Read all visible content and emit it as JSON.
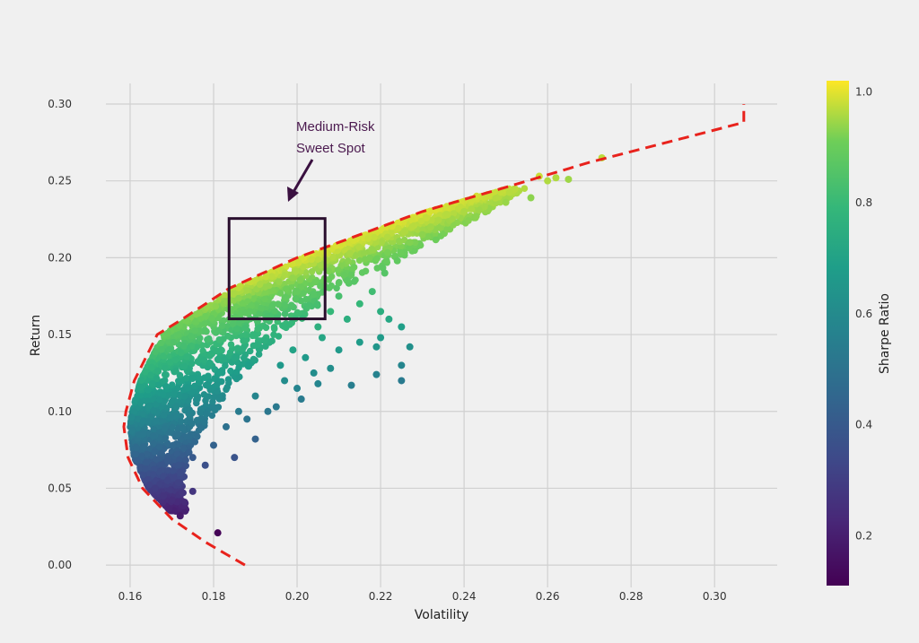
{
  "chart_data": {
    "type": "scatter",
    "title": "",
    "xlabel": "Volatility",
    "ylabel": "Return",
    "xlim": [
      0.1542,
      0.315
    ],
    "ylim": [
      -0.0145,
      0.3134
    ],
    "grid": true,
    "xticks": [
      "0.16",
      "0.18",
      "0.20",
      "0.22",
      "0.24",
      "0.26",
      "0.28",
      "0.30"
    ],
    "yticks": [
      "0.00",
      "0.05",
      "0.10",
      "0.15",
      "0.20",
      "0.25",
      "0.30"
    ],
    "colorbar": {
      "label": "Sharpe Ratio",
      "colormap": "viridis",
      "range": [
        0.11,
        1.02
      ],
      "ticks": [
        "0.2",
        "0.4",
        "0.6",
        "0.8",
        "1.0"
      ]
    },
    "color_value": "Sharpe Ratio = Return / Volatility",
    "frontier": {
      "style": "dashed",
      "color": "#e8221c",
      "points": [
        [
          0.1875,
          0.0
        ],
        [
          0.178,
          0.015
        ],
        [
          0.17,
          0.03
        ],
        [
          0.163,
          0.05
        ],
        [
          0.1595,
          0.07
        ],
        [
          0.1585,
          0.09
        ],
        [
          0.159,
          0.1
        ],
        [
          0.161,
          0.12
        ],
        [
          0.1665,
          0.15
        ],
        [
          0.1725,
          0.16
        ],
        [
          0.1837,
          0.18
        ],
        [
          0.2,
          0.2
        ],
        [
          0.215,
          0.215
        ],
        [
          0.23,
          0.23
        ],
        [
          0.249,
          0.245
        ],
        [
          0.27,
          0.262
        ],
        [
          0.29,
          0.276
        ],
        [
          0.307,
          0.288
        ],
        [
          0.307,
          0.3
        ]
      ]
    },
    "scatter_points": [
      [
        0.181,
        0.021
      ],
      [
        0.172,
        0.032
      ],
      [
        0.168,
        0.045
      ],
      [
        0.175,
        0.048
      ],
      [
        0.166,
        0.05
      ],
      [
        0.172,
        0.058
      ],
      [
        0.178,
        0.065
      ],
      [
        0.185,
        0.07
      ],
      [
        0.18,
        0.078
      ],
      [
        0.19,
        0.082
      ],
      [
        0.183,
        0.09
      ],
      [
        0.188,
        0.095
      ],
      [
        0.193,
        0.1
      ],
      [
        0.195,
        0.103
      ],
      [
        0.201,
        0.108
      ],
      [
        0.205,
        0.118
      ],
      [
        0.213,
        0.117
      ],
      [
        0.219,
        0.124
      ],
      [
        0.2,
        0.115
      ],
      [
        0.197,
        0.12
      ],
      [
        0.204,
        0.125
      ],
      [
        0.208,
        0.128
      ],
      [
        0.225,
        0.12
      ],
      [
        0.225,
        0.13
      ],
      [
        0.227,
        0.142
      ],
      [
        0.219,
        0.142
      ],
      [
        0.215,
        0.145
      ],
      [
        0.22,
        0.148
      ],
      [
        0.206,
        0.148
      ],
      [
        0.21,
        0.14
      ],
      [
        0.202,
        0.135
      ],
      [
        0.199,
        0.14
      ],
      [
        0.212,
        0.16
      ],
      [
        0.22,
        0.165
      ],
      [
        0.222,
        0.16
      ],
      [
        0.225,
        0.155
      ],
      [
        0.215,
        0.17
      ],
      [
        0.218,
        0.178
      ],
      [
        0.21,
        0.175
      ],
      [
        0.221,
        0.19
      ],
      [
        0.224,
        0.198
      ],
      [
        0.227,
        0.21
      ],
      [
        0.232,
        0.22
      ],
      [
        0.236,
        0.228
      ],
      [
        0.24,
        0.23
      ],
      [
        0.243,
        0.24
      ],
      [
        0.245,
        0.24
      ],
      [
        0.25,
        0.236
      ],
      [
        0.256,
        0.239
      ],
      [
        0.258,
        0.253
      ],
      [
        0.262,
        0.252
      ],
      [
        0.265,
        0.251
      ],
      [
        0.26,
        0.25
      ],
      [
        0.273,
        0.265
      ],
      [
        0.212,
        0.185
      ],
      [
        0.208,
        0.165
      ],
      [
        0.205,
        0.155
      ],
      [
        0.196,
        0.13
      ],
      [
        0.19,
        0.11
      ],
      [
        0.186,
        0.1
      ],
      [
        0.175,
        0.07
      ],
      [
        0.172,
        0.06
      ],
      [
        0.169,
        0.055
      ],
      [
        0.218,
        0.205
      ],
      [
        0.23,
        0.215
      ]
    ],
    "annotation": {
      "text_line1": "Medium-Risk",
      "text_line2": "Sweet Spot",
      "color": "#4b1a4f",
      "box": {
        "vol": [
          0.1837,
          0.2067
        ],
        "ret": [
          0.1602,
          0.2255
        ]
      }
    }
  }
}
